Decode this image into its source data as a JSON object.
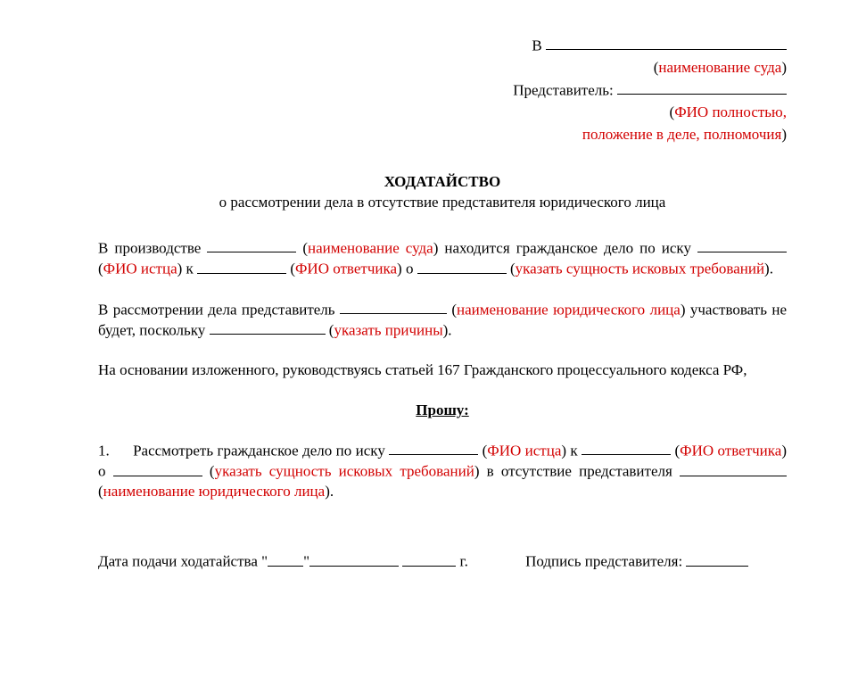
{
  "header": {
    "v_prefix": "В",
    "court_hint": "наименование суда",
    "rep_label": "Представитель:",
    "rep_hint1": "ФИО полностью,",
    "rep_hint2": "положение в деле, полномочия"
  },
  "title": "ХОДАТАЙСТВО",
  "subtitle": "о рассмотрении дела в отсутствие представителя юридического лица",
  "p1": {
    "t1": "В производстве ",
    "court_hint": "наименование суда",
    "t2": " находится гражданское дело по иску ",
    "hint_istets": "ФИО истца",
    "t3": " к ",
    "hint_otv": "ФИО ответчика",
    "t4": " о ",
    "hint_claims": "указать сущность исковых требований",
    "t5": "."
  },
  "p2": {
    "t1": "В рассмотрении дела представитель ",
    "hint_org": "наименование юридического лица",
    "t2": " участвовать не будет, поскольку ",
    "hint_reason": "указать причины",
    "t3": "."
  },
  "p3": "На основании изложенного, руководствуясь статьей 167 Гражданского процессуального кодекса РФ,",
  "ask": "Прошу:",
  "item1": {
    "num": "1.",
    "t1": "Рассмотреть гражданское дело по иску ",
    "hint_istets": "ФИО истца",
    "t2": " к ",
    "hint_otv": "ФИО ответчика",
    "t3": " о ",
    "hint_claims": "указать сущность исковых требований",
    "t4": " в отсутствие представителя ",
    "hint_org": "наименование юридического лица",
    "t5": "."
  },
  "footer": {
    "date_label": "Дата подачи ходатайства \"",
    "date_mid": "\"",
    "date_year": " г.",
    "sign_label": "Подпись представителя: "
  },
  "colors": {
    "text": "#000000",
    "hint": "#d20000",
    "background": "#ffffff"
  }
}
